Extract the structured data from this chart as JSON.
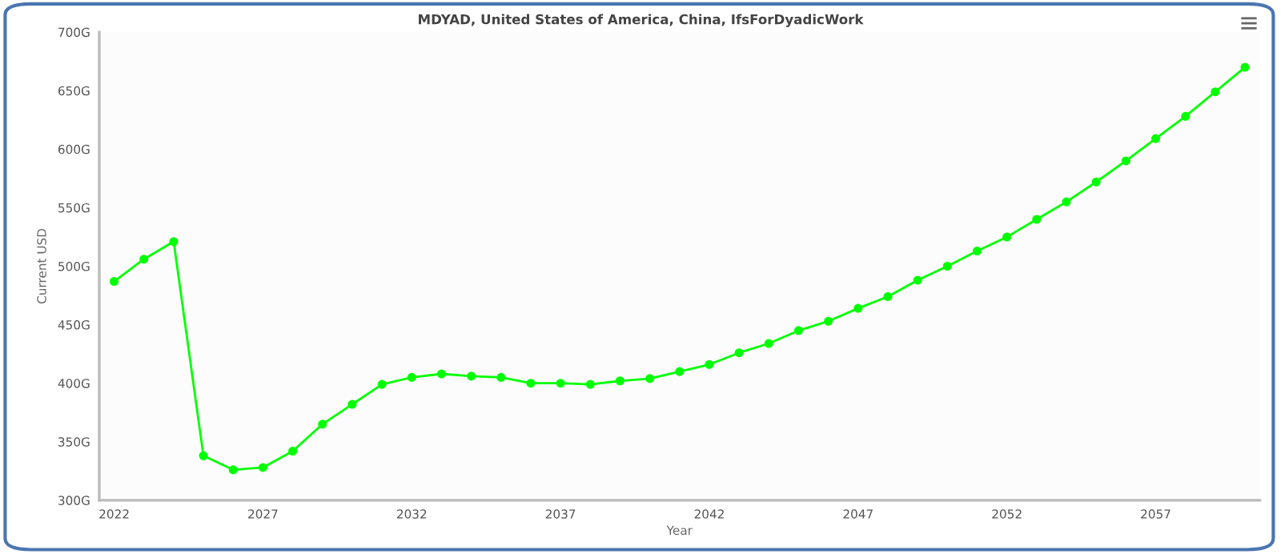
{
  "chart_data": {
    "type": "line",
    "title": "MDYAD, United States of America, China, IfsForDyadicWork",
    "xlabel": "Year",
    "ylabel": "Current USD",
    "x": [
      2022,
      2023,
      2024,
      2025,
      2026,
      2027,
      2028,
      2029,
      2030,
      2031,
      2032,
      2033,
      2034,
      2035,
      2036,
      2037,
      2038,
      2039,
      2040,
      2041,
      2042,
      2043,
      2044,
      2045,
      2046,
      2047,
      2048,
      2049,
      2050,
      2051,
      2052,
      2053,
      2054,
      2055,
      2056,
      2057,
      2058,
      2059,
      2060
    ],
    "series": [
      {
        "color": "#00ff00",
        "values": [
          487,
          506,
          521,
          338,
          326,
          328,
          342,
          365,
          382,
          399,
          405,
          408,
          406,
          405,
          400,
          400,
          399,
          402,
          404,
          410,
          416,
          426,
          434,
          445,
          453,
          464,
          474,
          488,
          500,
          513,
          525,
          540,
          555,
          572,
          590,
          609,
          628,
          649,
          670
        ]
      }
    ],
    "xlim": [
      2021.5,
      2060.5
    ],
    "xticks": [
      2022,
      2027,
      2032,
      2037,
      2042,
      2047,
      2052,
      2057
    ],
    "ylim": [
      300,
      700
    ],
    "yticks": [
      {
        "value": 300,
        "label": "300G"
      },
      {
        "value": 350,
        "label": "350G"
      },
      {
        "value": 400,
        "label": "400G"
      },
      {
        "value": 450,
        "label": "450G"
      },
      {
        "value": 500,
        "label": "500G"
      },
      {
        "value": 550,
        "label": "550G"
      },
      {
        "value": 600,
        "label": "600G"
      },
      {
        "value": 650,
        "label": "650G"
      },
      {
        "value": 700,
        "label": "700G"
      }
    ],
    "grid": false,
    "marker": "circle",
    "line_style": "solid"
  }
}
